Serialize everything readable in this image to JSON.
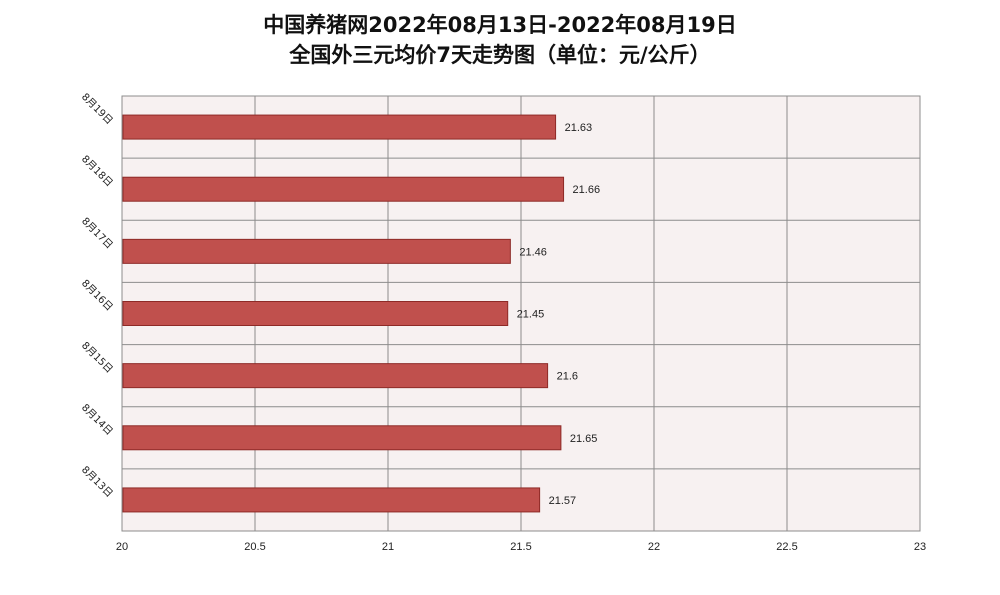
{
  "chart_data": {
    "type": "bar",
    "orientation": "horizontal",
    "title": "中国养猪网2022年08月13日-2022年08月19日",
    "subtitle": "全国外三元均价7天走势图（单位：元/公斤）",
    "categories": [
      "8月19日",
      "8月18日",
      "8月17日",
      "8月16日",
      "8月15日",
      "8月14日",
      "8月13日"
    ],
    "values": [
      21.63,
      21.66,
      21.46,
      21.45,
      21.6,
      21.65,
      21.57
    ],
    "data_labels": [
      "21.63",
      "21.66",
      "21.46",
      "21.45",
      "21.6",
      "21.65",
      "21.57"
    ],
    "xlim": [
      20,
      23
    ],
    "xticks": [
      "20",
      "20.5",
      "21",
      "21.5",
      "22",
      "22.5",
      "23"
    ],
    "xlabel": "",
    "ylabel": "",
    "grid": true,
    "legend": "none",
    "colors": {
      "bar": "#c0504d",
      "bar_edge": "#8e2a27",
      "plot_bg": "#f7f1f1",
      "grid": "#8c8c8c"
    }
  }
}
